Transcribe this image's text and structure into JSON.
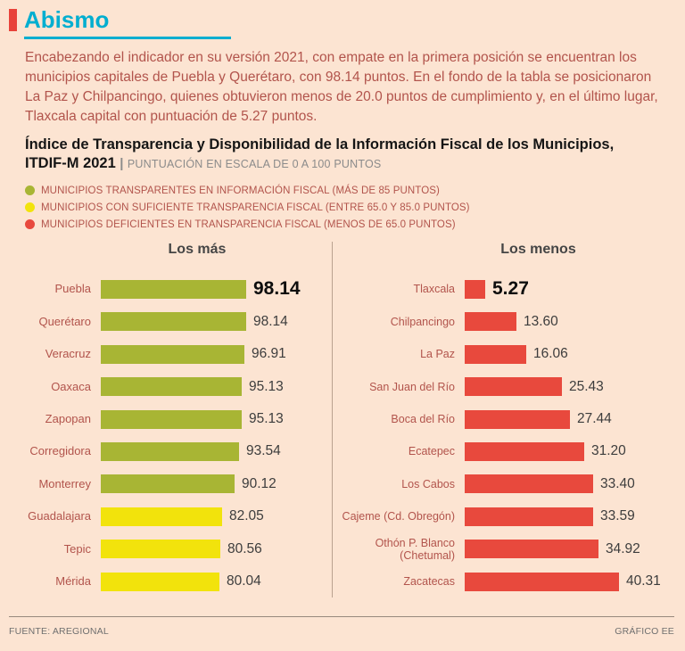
{
  "header": {
    "title": "Abismo"
  },
  "intro": "Encabezando el indicador en su versión 2021, con empate en la primera posición se encuentran los municipios capitales de Puebla y Querétaro, con 98.14 puntos. En el fondo de la tabla se posicionaron La Paz y Chilpancingo, quienes obtuvieron menos de 20.0 puntos de cumplimiento y, en el último lugar, Tlaxcala capital con puntuación de 5.27 puntos.",
  "chart_title": {
    "bold": "Índice de Transparencia y Disponibilidad de la Información Fiscal de los Municipios, ITDIF-M 2021",
    "separator": "|",
    "subtitle": "PUNTUACIÓN EN ESCALA DE 0 A 100 PUNTOS"
  },
  "legend": [
    {
      "color": "#a8b534",
      "label": "MUNICIPIOS TRANSPARENTES EN INFORMACIÓN FISCAL (MÁS DE 85 PUNTOS)"
    },
    {
      "color": "#f2e30c",
      "label": "MUNICIPIOS CON SUFICIENTE TRANSPARENCIA FISCAL (ENTRE 65.0 Y 85.0 PUNTOS)"
    },
    {
      "color": "#e8493d",
      "label": "MUNICIPIOS DEFICIENTES EN TRANSPARENCIA FISCAL (MENOS DE 65.0 PUNTOS)"
    }
  ],
  "chart_data": [
    {
      "type": "bar",
      "title": "Los más",
      "orientation": "horizontal",
      "xlim": [
        0,
        100
      ],
      "grid": false,
      "categories": [
        "Puebla",
        "Querétaro",
        "Veracruz",
        "Oaxaca",
        "Zapopan",
        "Corregidora",
        "Monterrey",
        "Guadalajara",
        "Tepic",
        "Mérida"
      ],
      "values": [
        98.14,
        98.14,
        96.91,
        95.13,
        95.13,
        93.54,
        90.12,
        82.05,
        80.56,
        80.04
      ],
      "value_labels": [
        "98.14",
        "98.14",
        "96.91",
        "95.13",
        "95.13",
        "93.54",
        "90.12",
        "82.05",
        "80.56",
        "80.04"
      ],
      "bar_colors": [
        "#a8b534",
        "#a8b534",
        "#a8b534",
        "#a8b534",
        "#a8b534",
        "#a8b534",
        "#a8b534",
        "#f2e30c",
        "#f2e30c",
        "#f2e30c"
      ]
    },
    {
      "type": "bar",
      "title": "Los menos",
      "orientation": "horizontal",
      "xlim": [
        0,
        42
      ],
      "grid": false,
      "categories": [
        "Tlaxcala",
        "Chilpancingo",
        "La Paz",
        "San Juan del Río",
        "Boca del Río",
        "Ecatepec",
        "Los Cabos",
        "Cajeme (Cd. Obregón)",
        "Othón P. Blanco (Chetumal)",
        "Zacatecas"
      ],
      "values": [
        5.27,
        13.6,
        16.06,
        25.43,
        27.44,
        31.2,
        33.4,
        33.59,
        34.92,
        40.31
      ],
      "value_labels": [
        "5.27",
        "13.60",
        "16.06",
        "25.43",
        "27.44",
        "31.20",
        "33.40",
        "33.59",
        "34.92",
        "40.31"
      ],
      "bar_colors": [
        "#e8493d",
        "#e8493d",
        "#e8493d",
        "#e8493d",
        "#e8493d",
        "#e8493d",
        "#e8493d",
        "#e8493d",
        "#e8493d",
        "#e8493d"
      ]
    }
  ],
  "footer": {
    "source": "FUENTE: AREGIONAL",
    "credit": "GRÁFICO EE"
  }
}
